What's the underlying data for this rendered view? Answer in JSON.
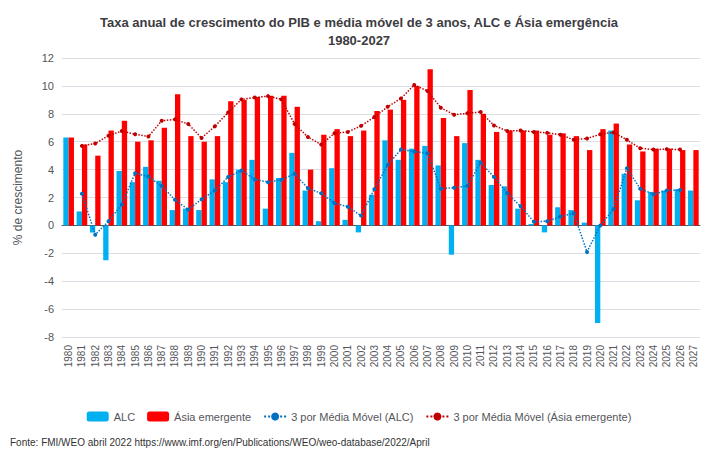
{
  "chart_data": {
    "type": "bar",
    "title": "Taxa anual de crescimento do PIB e média móvel de 3 anos, ALC e Ásia emergência\n1980-2027",
    "ylabel": "% de crescimento",
    "annotations": [
      "Fonte: FMI/WEO abril 2022",
      "https://www.imf.org/en/Publications/WEO/weo-database/2022/April"
    ],
    "categories": [
      "1980",
      "1981",
      "1982",
      "1983",
      "1984",
      "1985",
      "1986",
      "1987",
      "1988",
      "1989",
      "1990",
      "1991",
      "1992",
      "1993",
      "1994",
      "1995",
      "1996",
      "1997",
      "1998",
      "1999",
      "2000",
      "2001",
      "2002",
      "2003",
      "2004",
      "2005",
      "2006",
      "2007",
      "2008",
      "2009",
      "2010",
      "2011",
      "2012",
      "2013",
      "2014",
      "2015",
      "2016",
      "2017",
      "2018",
      "2019",
      "2020",
      "2021",
      "2022",
      "2023",
      "2024",
      "2025",
      "2026",
      "2027"
    ],
    "series": [
      {
        "name": "ALC",
        "type": "bar",
        "color": "#00B0F0",
        "values": [
          6.3,
          1.0,
          -0.5,
          -2.5,
          3.9,
          3.1,
          4.2,
          3.2,
          1.1,
          1.2,
          1.1,
          3.3,
          3.1,
          4.0,
          4.7,
          1.2,
          3.4,
          5.2,
          2.5,
          0.3,
          4.1,
          0.4,
          -0.5,
          2.2,
          6.1,
          4.7,
          5.5,
          5.7,
          4.3,
          -2.1,
          5.9,
          4.7,
          2.9,
          2.8,
          1.2,
          0.1,
          -0.5,
          1.3,
          1.1,
          0.2,
          -7.0,
          6.8,
          3.7,
          1.8,
          2.4,
          2.5,
          2.6,
          2.5
        ]
      },
      {
        "name": "Ásia emergente",
        "type": "bar",
        "color": "#FF0000",
        "values": [
          6.3,
          5.8,
          5.0,
          6.8,
          7.5,
          6.0,
          6.1,
          7.0,
          9.4,
          6.4,
          6.0,
          6.4,
          8.9,
          9.0,
          9.2,
          9.3,
          9.3,
          8.5,
          4.0,
          6.5,
          6.9,
          6.4,
          6.8,
          8.2,
          8.3,
          9.0,
          10.0,
          11.2,
          7.7,
          6.4,
          9.7,
          8.0,
          6.7,
          6.8,
          6.8,
          6.8,
          6.5,
          6.6,
          6.4,
          5.4,
          6.9,
          7.3,
          5.8,
          5.3,
          5.5,
          5.5,
          5.4,
          5.4
        ]
      },
      {
        "name": "3 por Média Móvel (ALC)",
        "type": "line",
        "color": "#0070C0",
        "line_style": "dotted",
        "marker": "circle",
        "values": [
          null,
          2.2666666667,
          -0.6666666667,
          0.3,
          1.5,
          3.7333333333,
          3.5,
          2.8333333333,
          1.8333333333,
          1.1333333333,
          1.8666666667,
          2.5,
          3.4666666667,
          3.9333333333,
          3.3,
          3.1,
          3.2666666667,
          3.7,
          2.6666666667,
          2.3,
          1.6,
          1.3333333333,
          0.7,
          2.6,
          4.3333333333,
          5.4333333333,
          5.3,
          5.1666666667,
          2.6333333333,
          2.7,
          2.8333333333,
          4.5,
          3.4666666667,
          2.3,
          1.3666666667,
          0.2666666667,
          0.3,
          0.6333333333,
          0.8666666667,
          -1.9,
          0,
          1.1666666667,
          4.1,
          2.6333333333,
          2.2333333333,
          2.5,
          2.5333333333,
          null
        ]
      },
      {
        "name": "3 por Média Móvel (Ásia emergente)",
        "type": "line",
        "color": "#C00000",
        "line_style": "dotted",
        "marker": "circle",
        "values": [
          null,
          5.7,
          5.8666666667,
          6.4333333333,
          6.7666666667,
          6.5333333333,
          6.3666666667,
          7.5,
          7.6,
          7.2666666667,
          6.2666666667,
          7.1,
          8.1,
          9.0333333333,
          9.1666666667,
          9.2666666667,
          9.0333333333,
          7.2666666667,
          6.3333333333,
          5.8,
          6.6,
          6.7,
          7.1333333333,
          7.7666666667,
          8.5,
          9.1,
          10.0666666667,
          9.6333333333,
          8.4333333333,
          7.9333333333,
          8.0333333333,
          8.1333333333,
          7.1666666667,
          6.7666666667,
          6.8,
          6.7,
          6.6333333333,
          6.5,
          6.1333333333,
          6.2333333333,
          6.5333333333,
          6.6666666667,
          6.1333333333,
          5.5333333333,
          5.4333333333,
          5.4666666667,
          5.4333333333,
          null
        ]
      }
    ],
    "ylim": [
      -8,
      12
    ],
    "yticks": [
      -8,
      -6,
      -4,
      -2,
      0,
      2,
      4,
      6,
      8,
      10,
      12
    ],
    "grid": true,
    "legend": "bottom"
  }
}
